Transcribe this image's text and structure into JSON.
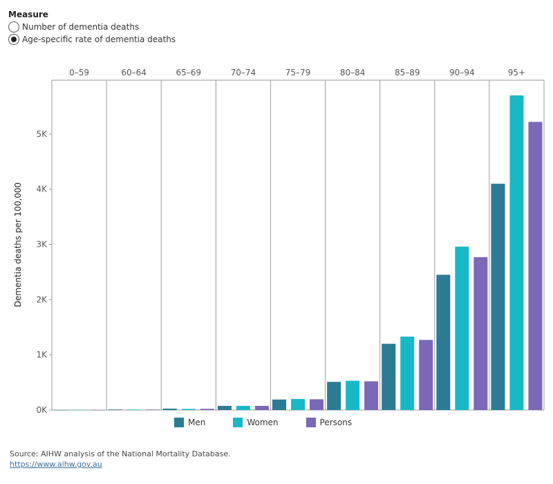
{
  "measure": {
    "title": "Measure",
    "options": [
      {
        "label": "Number of dementia deaths",
        "checked": false
      },
      {
        "label": "Age-specific rate of dementia deaths",
        "checked": true
      }
    ]
  },
  "chart_data": {
    "type": "bar",
    "categories": [
      "0–59",
      "60–64",
      "65–69",
      "70–74",
      "75–79",
      "80–84",
      "85–89",
      "90–94",
      "95+"
    ],
    "series": [
      {
        "name": "Men",
        "color": "#2b7b94",
        "values": [
          1,
          10,
          25,
          75,
          190,
          510,
          1200,
          2450,
          4100
        ]
      },
      {
        "name": "Women",
        "color": "#19b8c6",
        "values": [
          1,
          8,
          20,
          75,
          200,
          530,
          1330,
          2960,
          5700
        ]
      },
      {
        "name": "Persons",
        "color": "#7b68b6",
        "values": [
          1,
          9,
          22,
          75,
          195,
          520,
          1270,
          2770,
          5220
        ]
      }
    ],
    "ylabel": "Dementia deaths per 100,000",
    "ylim": [
      0,
      5975
    ],
    "yticks": [
      0,
      1000,
      2000,
      3000,
      4000,
      5000
    ],
    "ytick_labels": [
      "0K",
      "1K",
      "2K",
      "3K",
      "4K",
      "5K"
    ],
    "legend_position": "bottom"
  },
  "source": {
    "text": "Source: AIHW analysis of the National Mortality Database.",
    "link": "https://www.aihw.gov.au"
  }
}
